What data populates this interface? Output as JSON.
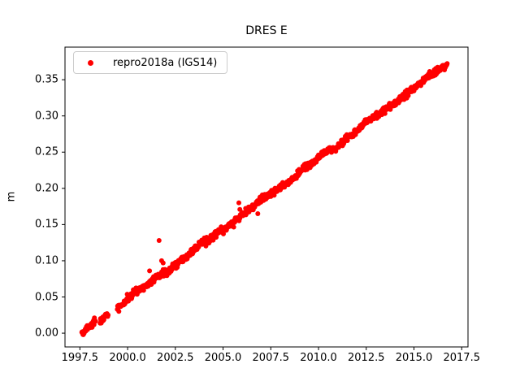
{
  "chart_data": {
    "type": "scatter",
    "title": "DRES E",
    "xlabel": "",
    "ylabel": "m",
    "grid": false,
    "legend": {
      "label": "repro2018a (IGS14)",
      "position": "upper left",
      "marker_color": "#ff0000"
    },
    "marker": {
      "style": "dot",
      "color": "#ff0000",
      "radius_px": 3
    },
    "axes": {
      "xlim": [
        1996.72,
        2017.83
      ],
      "ylim": [
        -0.019,
        0.395
      ],
      "xticks": [
        "1997.5",
        "2000.0",
        "2002.5",
        "2005.0",
        "2007.5",
        "2010.0",
        "2012.5",
        "2015.0",
        "2017.5"
      ],
      "yticks": [
        "0.00",
        "0.05",
        "0.10",
        "0.15",
        "0.20",
        "0.25",
        "0.30",
        "0.35"
      ],
      "spine_color": "#000000"
    },
    "series": [
      {
        "name": "repro2018a (IGS14)",
        "trend": {
          "x_start": 1997.6,
          "x_end": 2016.75,
          "y_start": 0.0,
          "slope_m_per_yr": 0.01943
        },
        "gaps": [
          [
            1998.32,
            1998.55
          ],
          [
            1998.98,
            1999.45
          ]
        ],
        "sample_interval_yr": 0.02,
        "noise_sigma_m": 0.0024,
        "anchor_points": [
          [
            1997.6,
            0.0
          ],
          [
            1998.0,
            0.008
          ],
          [
            1999.0,
            0.027
          ],
          [
            2000.0,
            0.047
          ],
          [
            2001.0,
            0.066
          ],
          [
            2002.0,
            0.085
          ],
          [
            2003.0,
            0.105
          ],
          [
            2004.0,
            0.124
          ],
          [
            2005.0,
            0.144
          ],
          [
            2006.0,
            0.163
          ],
          [
            2007.0,
            0.183
          ],
          [
            2008.0,
            0.202
          ],
          [
            2009.0,
            0.221
          ],
          [
            2010.0,
            0.241
          ],
          [
            2011.0,
            0.26
          ],
          [
            2012.0,
            0.28
          ],
          [
            2013.0,
            0.299
          ],
          [
            2014.0,
            0.319
          ],
          [
            2015.0,
            0.338
          ],
          [
            2016.0,
            0.357
          ],
          [
            2016.75,
            0.372
          ]
        ],
        "outliers": [
          [
            1998.62,
            0.014
          ],
          [
            2000.3,
            0.06
          ],
          [
            2001.15,
            0.086
          ],
          [
            2001.65,
            0.128
          ],
          [
            2001.78,
            0.1
          ],
          [
            2001.86,
            0.097
          ],
          [
            2005.83,
            0.18
          ],
          [
            2005.88,
            0.171
          ],
          [
            2006.82,
            0.165
          ]
        ]
      }
    ]
  }
}
